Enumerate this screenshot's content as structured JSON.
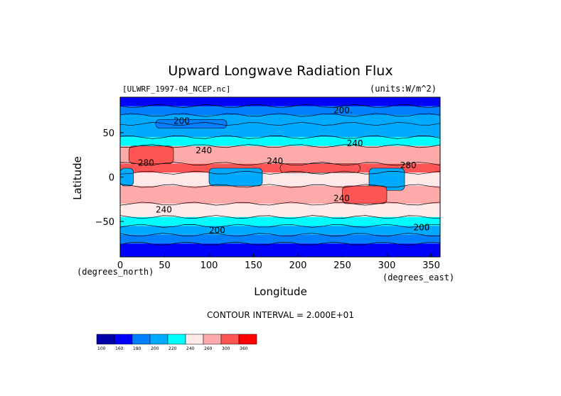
{
  "chart_data": {
    "type": "heatmap",
    "title": "Upward Longwave Radiation Flux",
    "file_label": "[ULWRF_1997-04_NCEP.nc]",
    "units_label": "(units:W/m^2)",
    "xlabel": "Longitude",
    "ylabel": "Latitude",
    "x_units": "(degrees_north)",
    "x_units_east": "(degrees_east)",
    "xlim": [
      0,
      360
    ],
    "ylim": [
      -90,
      90
    ],
    "x_ticks": [
      "0",
      "50",
      "100",
      "150",
      "200",
      "250",
      "300",
      "350"
    ],
    "y_ticks": [
      "50",
      "0",
      "−50"
    ],
    "contour_note": "CONTOUR INTERVAL = 2.000E+01",
    "contour_labels": [
      {
        "text": "200",
        "lon": 60,
        "lat": 60
      },
      {
        "text": "200.",
        "lon": 240,
        "lat": 72
      },
      {
        "text": "240",
        "lon": 85,
        "lat": 27
      },
      {
        "text": "240",
        "lon": 255,
        "lat": 35
      },
      {
        "text": "240",
        "lon": 165,
        "lat": 15
      },
      {
        "text": "280",
        "lon": 20,
        "lat": 13
      },
      {
        "text": "280",
        "lon": 315,
        "lat": 10
      },
      {
        "text": "240",
        "lon": 40,
        "lat": -40
      },
      {
        "text": "240",
        "lon": 240,
        "lat": -27
      },
      {
        "text": "200",
        "lon": 100,
        "lat": -63
      },
      {
        "text": "200",
        "lon": 330,
        "lat": -60
      }
    ],
    "colorbar": {
      "colors": [
        "#0000a8",
        "#0000ff",
        "#0080ff",
        "#00aaff",
        "#00ffff",
        "#ffe9e9",
        "#ffaaaa",
        "#ff5555",
        "#ff0000"
      ],
      "tick_labels": [
        "100",
        "160",
        "180",
        "200",
        "220",
        "240",
        "260",
        "300",
        "360"
      ]
    },
    "latitude_bands": [
      {
        "lat_from": 90,
        "lat_to": 80,
        "value": 170
      },
      {
        "lat_from": 80,
        "lat_to": 70,
        "value": 190
      },
      {
        "lat_from": 70,
        "lat_to": 60,
        "value": 205
      },
      {
        "lat_from": 60,
        "lat_to": 45,
        "value": 215
      },
      {
        "lat_from": 45,
        "lat_to": 35,
        "value": 235
      },
      {
        "lat_from": 35,
        "lat_to": 15,
        "value": 265
      },
      {
        "lat_from": 15,
        "lat_to": 5,
        "value": 285
      },
      {
        "lat_from": 5,
        "lat_to": -10,
        "value": 250
      },
      {
        "lat_from": -10,
        "lat_to": -30,
        "value": 275
      },
      {
        "lat_from": -30,
        "lat_to": -45,
        "value": 245
      },
      {
        "lat_from": -45,
        "lat_to": -55,
        "value": 225
      },
      {
        "lat_from": -55,
        "lat_to": -65,
        "value": 210
      },
      {
        "lat_from": -65,
        "lat_to": -75,
        "value": 190
      },
      {
        "lat_from": -75,
        "lat_to": -90,
        "value": 170
      }
    ],
    "anomalies": [
      {
        "lon_from": 0,
        "lon_to": 15,
        "lat_from": 10,
        "lat_to": -10,
        "value": 205
      },
      {
        "lon_from": 100,
        "lon_to": 160,
        "lat_from": 10,
        "lat_to": -10,
        "value": 215
      },
      {
        "lon_from": 280,
        "lon_to": 320,
        "lat_from": 10,
        "lat_to": -15,
        "value": 205
      },
      {
        "lon_from": 180,
        "lon_to": 270,
        "lat_from": 15,
        "lat_to": 5,
        "value": 290
      },
      {
        "lon_from": 10,
        "lon_to": 60,
        "lat_from": 35,
        "lat_to": 15,
        "value": 290
      },
      {
        "lon_from": 40,
        "lon_to": 120,
        "lat_from": 65,
        "lat_to": 55,
        "value": 190
      },
      {
        "lon_from": 250,
        "lon_to": 300,
        "lat_from": -10,
        "lat_to": -30,
        "value": 295
      }
    ]
  }
}
